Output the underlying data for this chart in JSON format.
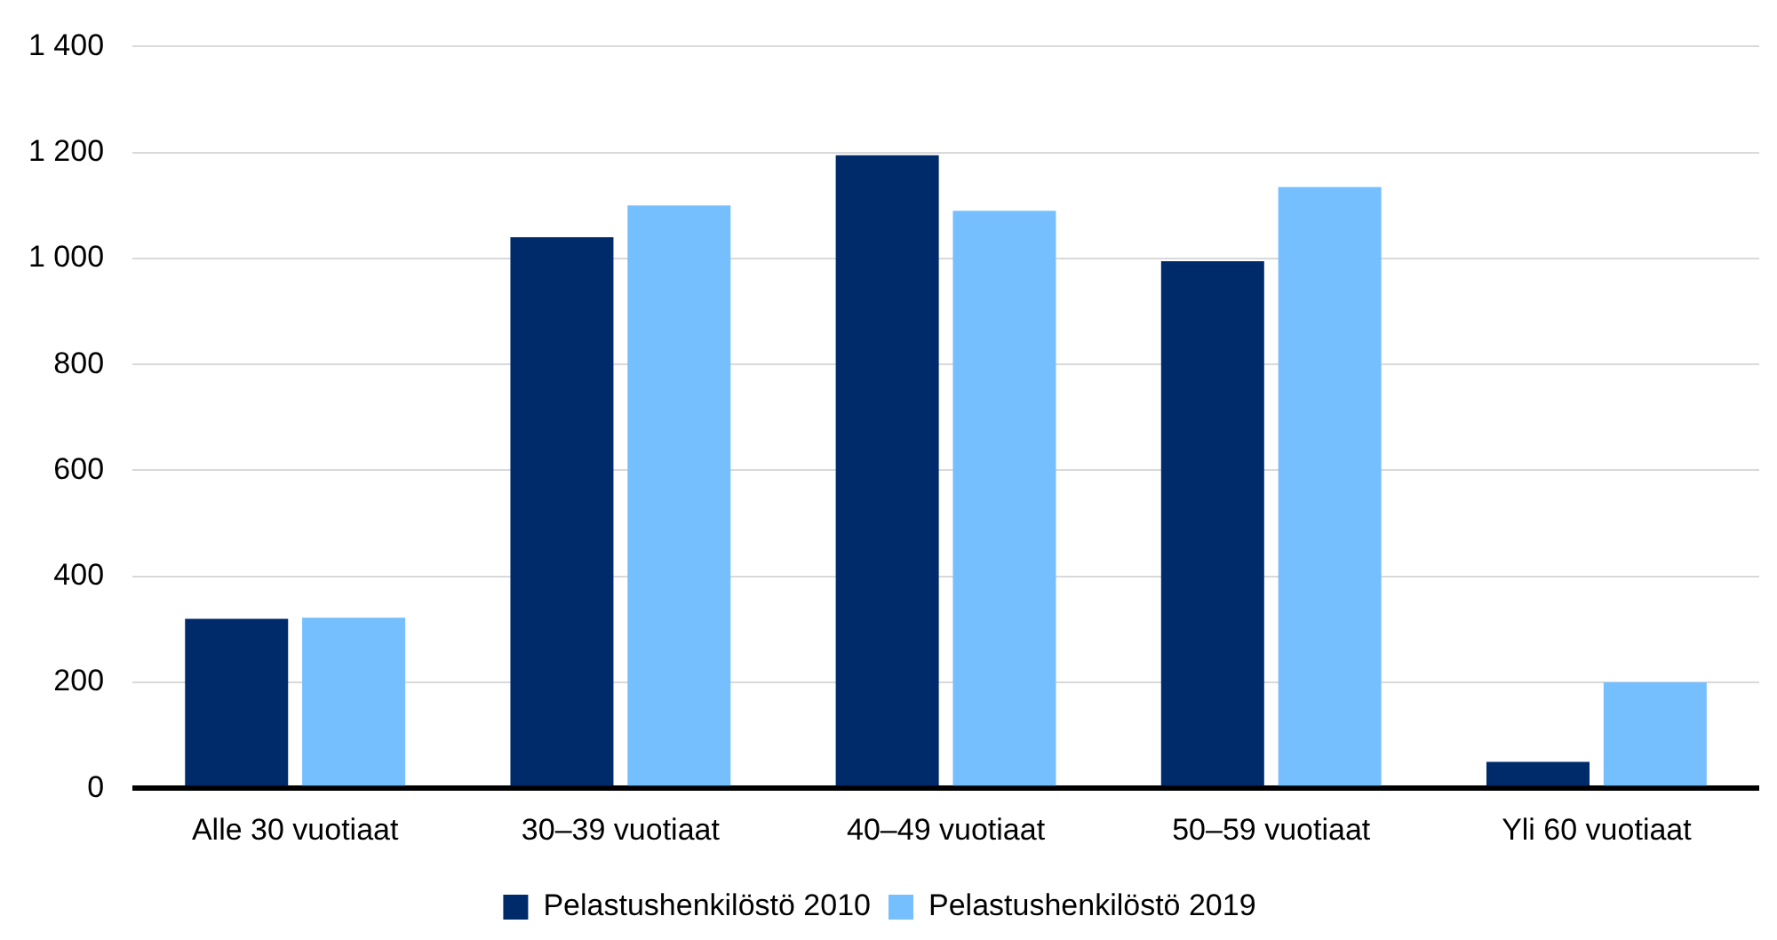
{
  "chart_data": {
    "type": "bar",
    "categories": [
      "Alle 30 vuotiaat",
      "30–39 vuotiaat",
      "40–49 vuotiaat",
      "50–59 vuotiaat",
      "Yli 60 vuotiaat"
    ],
    "series": [
      {
        "name": "Pelastushenkilöstö 2010",
        "color": "#002b6b",
        "values": [
          320,
          1040,
          1195,
          995,
          50
        ]
      },
      {
        "name": "Pelastushenkilöstö 2019",
        "color": "#75bfff",
        "values": [
          322,
          1100,
          1090,
          1135,
          200
        ]
      }
    ],
    "ylim": [
      0,
      1400
    ],
    "yticks": [
      0,
      200,
      400,
      600,
      800,
      {
        "value": 1000,
        "label": "1 000"
      },
      {
        "value": 1200,
        "label": "1 200"
      },
      {
        "value": 1400,
        "label": "1 400"
      }
    ],
    "grid": "y",
    "legend": "bottom"
  }
}
